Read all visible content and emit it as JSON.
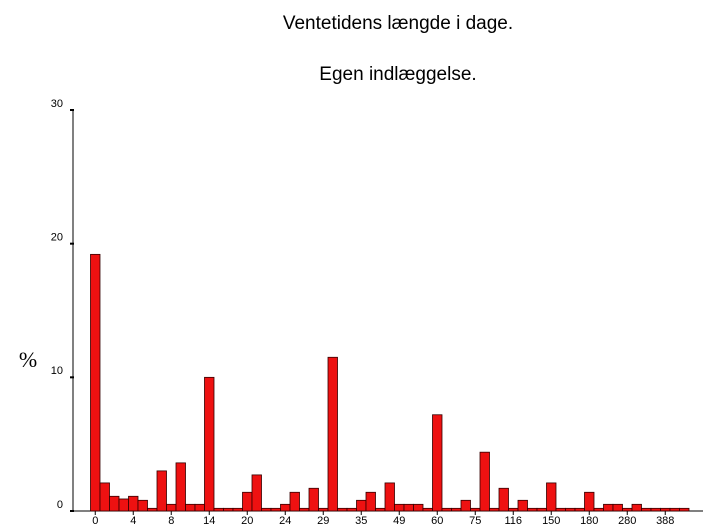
{
  "chart_data": {
    "type": "bar",
    "title": "Ventetidens længde i dage.",
    "subtitle": "Egen indlæggelse.",
    "ylabel": "%",
    "color": "#ee1111",
    "ylim": [
      0,
      30
    ],
    "yticks": [
      0,
      10,
      20,
      30
    ],
    "categories": [
      "0",
      null,
      null,
      null,
      "4",
      null,
      null,
      null,
      "8",
      null,
      null,
      null,
      "14",
      null,
      null,
      null,
      "20",
      null,
      null,
      null,
      "24",
      null,
      null,
      null,
      "29",
      null,
      null,
      null,
      "35",
      null,
      null,
      null,
      "49",
      null,
      null,
      null,
      "60",
      null,
      null,
      null,
      "75",
      null,
      null,
      null,
      "116",
      null,
      null,
      null,
      "150",
      null,
      null,
      null,
      "180",
      null,
      null,
      null,
      "280",
      null,
      null,
      null,
      "388",
      null,
      null
    ],
    "values": [
      19.2,
      2.1,
      1.1,
      0.9,
      1.1,
      0.8,
      0.2,
      3.0,
      0.5,
      3.6,
      0.5,
      0.5,
      10.0,
      0.2,
      0.2,
      0.2,
      1.4,
      2.7,
      0.2,
      0.2,
      0.5,
      1.4,
      0.2,
      1.7,
      0.2,
      11.5,
      0.2,
      0.2,
      0.8,
      1.4,
      0.2,
      2.1,
      0.5,
      0.5,
      0.5,
      0.2,
      7.2,
      0.2,
      0.2,
      0.8,
      0.2,
      4.4,
      0.2,
      1.7,
      0.2,
      0.8,
      0.2,
      0.2,
      2.1,
      0.2,
      0.2,
      0.2,
      1.4,
      0.2,
      0.5,
      0.5,
      0.2,
      0.5,
      0.2,
      0.2,
      0.2,
      0.2,
      0.2
    ]
  }
}
